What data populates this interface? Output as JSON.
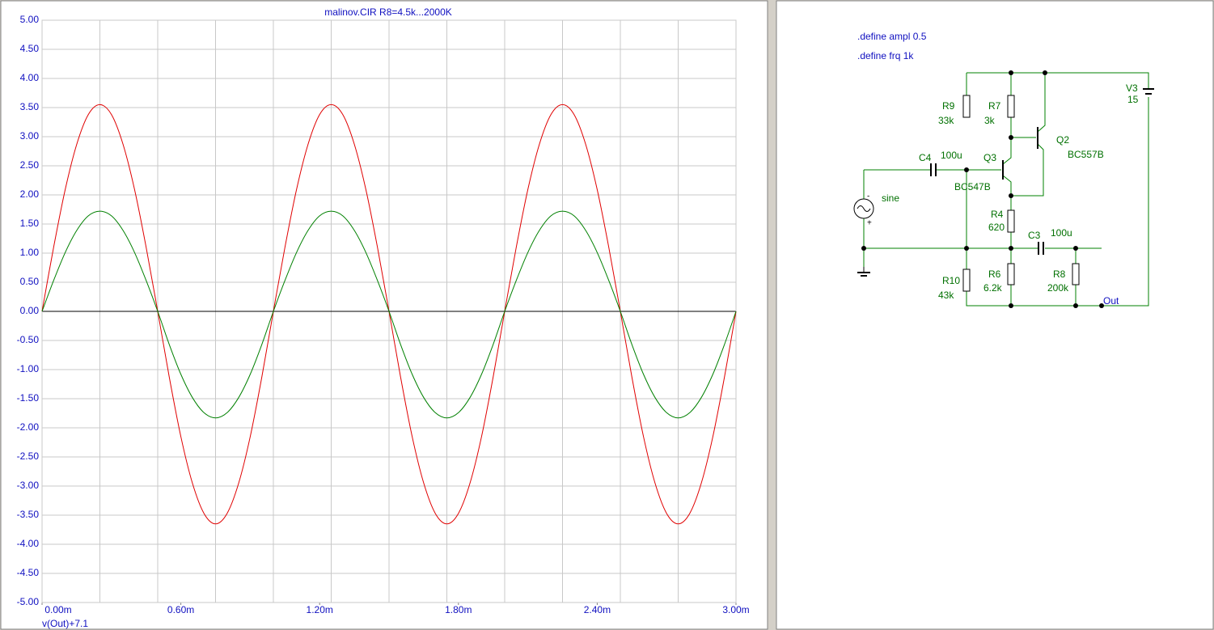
{
  "chart_data": {
    "type": "line",
    "title": "malinov.CIR R8=4.5k...2000K",
    "y_expression": "v(Out)+7.1",
    "x": [
      0,
      0.05,
      0.1,
      0.15,
      0.2,
      0.25,
      0.3,
      0.35,
      0.4,
      0.45,
      0.5,
      0.55,
      0.6,
      0.65,
      0.7,
      0.75,
      0.8,
      0.85,
      0.9,
      0.95,
      1,
      1.05,
      1.1,
      1.15,
      1.2,
      1.25,
      1.3,
      1.35,
      1.4,
      1.45,
      1.5,
      1.55,
      1.6,
      1.65,
      1.7,
      1.75,
      1.8,
      1.85,
      1.9,
      1.95,
      2,
      2.05,
      2.1,
      2.15,
      2.2,
      2.25,
      2.3,
      2.35,
      2.4,
      2.45,
      2.5,
      2.55,
      2.6,
      2.65,
      2.7,
      2.75,
      2.8,
      2.85,
      2.9,
      2.95,
      3
    ],
    "series": [
      {
        "color": "#e00000",
        "values": [
          0,
          1.1,
          2.09,
          2.87,
          3.38,
          3.55,
          3.38,
          2.87,
          2.09,
          1.1,
          0,
          -1.13,
          -2.15,
          -2.95,
          -3.47,
          -3.65,
          -3.47,
          -2.95,
          -2.15,
          -1.13,
          0,
          1.1,
          2.09,
          2.87,
          3.38,
          3.55,
          3.38,
          2.87,
          2.09,
          1.1,
          0,
          -1.13,
          -2.15,
          -2.95,
          -3.47,
          -3.65,
          -3.47,
          -2.95,
          -2.15,
          -1.13,
          0,
          1.1,
          2.09,
          2.87,
          3.38,
          3.55,
          3.38,
          2.87,
          2.09,
          1.1,
          0,
          -1.13,
          -2.15,
          -2.95,
          -3.47,
          -3.65,
          -3.47,
          -2.95,
          -2.15,
          -1.13,
          0
        ]
      },
      {
        "color": "#008000",
        "values": [
          0,
          0.53,
          1.01,
          1.39,
          1.64,
          1.72,
          1.64,
          1.39,
          1.01,
          0.53,
          0,
          -0.57,
          -1.08,
          -1.48,
          -1.74,
          -1.83,
          -1.74,
          -1.48,
          -1.08,
          -0.57,
          0,
          0.53,
          1.01,
          1.39,
          1.64,
          1.72,
          1.64,
          1.39,
          1.01,
          0.53,
          0,
          -0.57,
          -1.08,
          -1.48,
          -1.74,
          -1.83,
          -1.74,
          -1.48,
          -1.08,
          -0.57,
          0,
          0.53,
          1.01,
          1.39,
          1.64,
          1.72,
          1.64,
          1.39,
          1.01,
          0.53,
          0,
          -0.57,
          -1.08,
          -1.48,
          -1.74,
          -1.83,
          -1.74,
          -1.48,
          -1.08,
          -0.57,
          0
        ]
      }
    ],
    "xlim": [
      0,
      3
    ],
    "ylim": [
      -5,
      5
    ],
    "xticks": [
      {
        "value": 0,
        "label": "0.00m"
      },
      {
        "value": 0.6,
        "label": "0.60m"
      },
      {
        "value": 1.2,
        "label": "1.20m"
      },
      {
        "value": 1.8,
        "label": "1.80m"
      },
      {
        "value": 2.4,
        "label": "2.40m"
      },
      {
        "value": 3,
        "label": "3.00m"
      }
    ],
    "xgrid": [
      0,
      0.25,
      0.5,
      0.75,
      1,
      1.25,
      1.5,
      1.75,
      2,
      2.25,
      2.5,
      2.75,
      3
    ],
    "yticks": [
      {
        "value": 5,
        "label": "5.00"
      },
      {
        "value": 4.5,
        "label": "4.50"
      },
      {
        "value": 4,
        "label": "4.00"
      },
      {
        "value": 3.5,
        "label": "3.50"
      },
      {
        "value": 3,
        "label": "3.00"
      },
      {
        "value": 2.5,
        "label": "2.50"
      },
      {
        "value": 2,
        "label": "2.00"
      },
      {
        "value": 1.5,
        "label": "1.50"
      },
      {
        "value": 1,
        "label": "1.00"
      },
      {
        "value": 0.5,
        "label": "0.50"
      },
      {
        "value": 0,
        "label": "0.00"
      },
      {
        "value": -0.5,
        "label": "-0.50"
      },
      {
        "value": -1,
        "label": "-1.00"
      },
      {
        "value": -1.5,
        "label": "-1.50"
      },
      {
        "value": -2,
        "label": "-2.00"
      },
      {
        "value": -2.5,
        "label": "-2.50"
      },
      {
        "value": -3,
        "label": "-3.00"
      },
      {
        "value": -3.5,
        "label": "-3.50"
      },
      {
        "value": -4,
        "label": "-4.00"
      },
      {
        "value": -4.5,
        "label": "-4.50"
      },
      {
        "value": -5,
        "label": "-5.00"
      }
    ],
    "grid": true,
    "zero_line": true
  },
  "schematic": {
    "directives": [
      ".define ampl 0.5",
      ".define frq 1k"
    ],
    "components": [
      {
        "name": "R9",
        "value": "33k"
      },
      {
        "name": "R7",
        "value": "3k"
      },
      {
        "name": "V3",
        "value": "15"
      },
      {
        "name": "Q2",
        "value": "BC557B"
      },
      {
        "name": "C4",
        "value": "100u"
      },
      {
        "name": "Q3",
        "value": "BC547B"
      },
      {
        "name": "R4",
        "value": "620"
      },
      {
        "name": "C3",
        "value": "100u"
      },
      {
        "name": "R10",
        "value": "43k"
      },
      {
        "name": "R6",
        "value": "6.2k"
      },
      {
        "name": "R8",
        "value": "200k"
      }
    ],
    "source_label": "sine",
    "polarity": [
      "-",
      "+"
    ],
    "node_label": "Out"
  }
}
